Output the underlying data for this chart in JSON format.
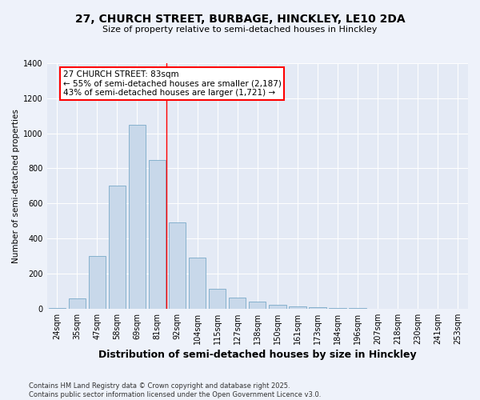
{
  "title_line1": "27, CHURCH STREET, BURBAGE, HINCKLEY, LE10 2DA",
  "title_line2": "Size of property relative to semi-detached houses in Hinckley",
  "xlabel": "Distribution of semi-detached houses by size in Hinckley",
  "ylabel": "Number of semi-detached properties",
  "footer_line1": "Contains HM Land Registry data © Crown copyright and database right 2025.",
  "footer_line2": "Contains public sector information licensed under the Open Government Licence v3.0.",
  "annotation_title": "27 CHURCH STREET: 83sqm",
  "annotation_line1": "← 55% of semi-detached houses are smaller (2,187)",
  "annotation_line2": "43% of semi-detached houses are larger (1,721) →",
  "bar_color": "#c8d8ea",
  "bar_edge_color": "#7aaac8",
  "categories": [
    "24sqm",
    "35sqm",
    "47sqm",
    "58sqm",
    "69sqm",
    "81sqm",
    "92sqm",
    "104sqm",
    "115sqm",
    "127sqm",
    "138sqm",
    "150sqm",
    "161sqm",
    "173sqm",
    "184sqm",
    "196sqm",
    "207sqm",
    "218sqm",
    "230sqm",
    "241sqm",
    "253sqm"
  ],
  "values": [
    5,
    60,
    300,
    700,
    1050,
    850,
    490,
    290,
    115,
    65,
    40,
    20,
    15,
    10,
    5,
    2,
    1,
    0,
    0,
    0,
    0
  ],
  "red_line_x": 5.45,
  "ylim": [
    0,
    1400
  ],
  "background_color": "#eef2fa",
  "plot_background": "#e4eaf5",
  "title_fontsize": 10,
  "subtitle_fontsize": 8,
  "xlabel_fontsize": 9,
  "ylabel_fontsize": 7.5,
  "tick_fontsize": 7,
  "footer_fontsize": 6,
  "annotation_fontsize": 7.5
}
